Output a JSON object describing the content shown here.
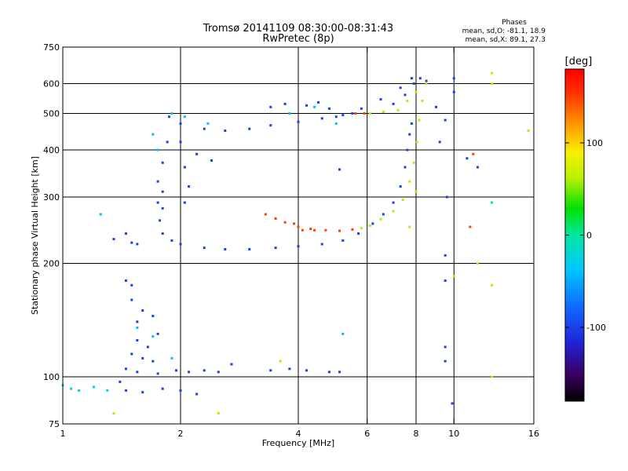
{
  "chart_data": {
    "type": "scatter",
    "title": "Tromsø 20141109 08:30:00-08:31:43",
    "subtitle": "RwPretec (8p)",
    "stats": {
      "heading": "Phases",
      "line_o": "mean, sd,O: -81.1, 18.9",
      "line_x": "mean, sd,X: 89.1, 27.3"
    },
    "xlabel": "Frequency [MHz]",
    "ylabel": "Stationary phase Virtual Height [km]",
    "x_scale": "log",
    "y_scale": "log",
    "xlim": [
      1,
      16
    ],
    "ylim": [
      75,
      750
    ],
    "x_ticks": [
      1,
      2,
      4,
      6,
      8,
      10,
      16
    ],
    "x_tick_labels": [
      "1",
      "2",
      "4",
      "6",
      "8",
      "10",
      "16"
    ],
    "y_ticks": [
      75,
      100,
      200,
      300,
      400,
      500,
      600,
      750
    ],
    "y_tick_labels": [
      "75",
      "100",
      "200",
      "300",
      "400",
      "500",
      "600",
      "750"
    ],
    "grid": true,
    "colorbar": {
      "label": "[deg]",
      "range": [
        -180,
        180
      ],
      "ticks": [
        100,
        0,
        -100
      ],
      "tick_labels": [
        "100",
        "0",
        "-100"
      ]
    },
    "series": [
      {
        "values": [
          [
            1.87,
            490,
            -100
          ],
          [
            2.0,
            470,
            -100
          ],
          [
            2.3,
            455,
            -100
          ],
          [
            2.6,
            450,
            -100
          ],
          [
            3.0,
            455,
            -100
          ],
          [
            3.4,
            465,
            -100
          ],
          [
            4.0,
            475,
            -100
          ],
          [
            4.6,
            485,
            -100
          ],
          [
            5.2,
            495,
            -100
          ],
          [
            5.8,
            515,
            -100
          ],
          [
            6.5,
            545,
            -100
          ],
          [
            7.3,
            585,
            -100
          ],
          [
            7.8,
            620,
            -100
          ],
          [
            3.4,
            520,
            -100
          ],
          [
            3.7,
            530,
            -100
          ],
          [
            4.2,
            525,
            -100
          ],
          [
            4.5,
            535,
            -100
          ],
          [
            4.8,
            515,
            -100
          ],
          [
            5.0,
            490,
            -100
          ],
          [
            5.5,
            500,
            -100
          ],
          [
            7.0,
            530,
            -100
          ],
          [
            7.5,
            560,
            -100
          ],
          [
            7.9,
            600,
            -100
          ],
          [
            8.2,
            620,
            -100
          ],
          [
            2.2,
            390,
            -100
          ],
          [
            2.4,
            375,
            -100
          ],
          [
            2.0,
            420,
            -100
          ],
          [
            1.85,
            420,
            -100
          ],
          [
            1.8,
            370,
            -100
          ],
          [
            1.75,
            330,
            -100
          ],
          [
            1.75,
            290,
            -100
          ],
          [
            1.77,
            260,
            -100
          ],
          [
            1.8,
            240,
            -100
          ],
          [
            1.9,
            230,
            -100
          ],
          [
            2.0,
            225,
            -100
          ],
          [
            2.3,
            220,
            -100
          ],
          [
            2.6,
            218,
            -100
          ],
          [
            3.0,
            218,
            -100
          ],
          [
            3.5,
            220,
            -100
          ],
          [
            4.0,
            222,
            -100
          ],
          [
            4.6,
            225,
            -100
          ],
          [
            5.2,
            230,
            -100
          ],
          [
            5.7,
            240,
            -100
          ],
          [
            6.2,
            255,
            -100
          ],
          [
            6.6,
            270,
            -100
          ],
          [
            7.0,
            290,
            -100
          ],
          [
            7.3,
            320,
            -100
          ],
          [
            7.5,
            360,
            -100
          ],
          [
            7.6,
            400,
            -100
          ],
          [
            7.7,
            440,
            -100
          ],
          [
            7.8,
            470,
            -100
          ],
          [
            2.05,
            290,
            -100
          ],
          [
            2.1,
            320,
            -100
          ],
          [
            2.05,
            360,
            -100
          ],
          [
            1.8,
            280,
            -100
          ],
          [
            1.8,
            310,
            -100
          ],
          [
            1.35,
            232,
            -100
          ],
          [
            1.45,
            240,
            -100
          ],
          [
            1.5,
            227,
            -100
          ],
          [
            1.55,
            225,
            -100
          ],
          [
            1.45,
            180,
            -100
          ],
          [
            1.5,
            175,
            -100
          ],
          [
            1.5,
            160,
            -100
          ],
          [
            1.6,
            150,
            -100
          ],
          [
            1.7,
            145,
            -100
          ],
          [
            1.55,
            140,
            -100
          ],
          [
            1.55,
            125,
            -100
          ],
          [
            1.65,
            120,
            -100
          ],
          [
            1.75,
            130,
            -100
          ],
          [
            1.5,
            115,
            -100
          ],
          [
            1.6,
            112,
            -100
          ],
          [
            1.7,
            110,
            -100
          ],
          [
            1.45,
            105,
            -100
          ],
          [
            1.55,
            103,
            -100
          ],
          [
            1.75,
            102,
            -100
          ],
          [
            1.95,
            104,
            -100
          ],
          [
            2.1,
            103,
            -100
          ],
          [
            2.3,
            104,
            -100
          ],
          [
            2.5,
            103,
            -100
          ],
          [
            1.45,
            92,
            -100
          ],
          [
            1.6,
            91,
            -100
          ],
          [
            1.8,
            93,
            -100
          ],
          [
            2.0,
            92,
            -100
          ],
          [
            2.2,
            90,
            -100
          ],
          [
            1.4,
            97,
            -100
          ],
          [
            2.7,
            108,
            -100
          ],
          [
            3.4,
            104,
            -100
          ],
          [
            3.8,
            105,
            -100
          ],
          [
            4.2,
            104,
            -100
          ],
          [
            4.8,
            103,
            -100
          ],
          [
            5.1,
            103,
            -100
          ],
          [
            8.5,
            610,
            -100
          ],
          [
            9.0,
            520,
            -100
          ],
          [
            9.2,
            420,
            -100
          ],
          [
            9.5,
            480,
            -100
          ],
          [
            10.0,
            570,
            -100
          ],
          [
            10.0,
            620,
            -100
          ],
          [
            9.6,
            300,
            -100
          ],
          [
            9.5,
            210,
            -100
          ],
          [
            9.5,
            180,
            -100
          ],
          [
            9.5,
            120,
            -100
          ],
          [
            9.5,
            110,
            -100
          ],
          [
            9.9,
            85,
            -100
          ],
          [
            10.8,
            380,
            -100
          ],
          [
            11.5,
            360,
            -100
          ],
          [
            5.1,
            355,
            -100
          ]
        ]
      },
      {
        "values": [
          [
            1.05,
            93,
            -20
          ],
          [
            1.1,
            92,
            -20
          ],
          [
            1.2,
            94,
            -20
          ],
          [
            1.3,
            92,
            -20
          ],
          [
            1.0,
            95,
            -20
          ],
          [
            1.9,
            500,
            -40
          ],
          [
            2.05,
            490,
            -40
          ],
          [
            2.35,
            470,
            -40
          ],
          [
            1.7,
            440,
            -40
          ],
          [
            1.75,
            400,
            -40
          ],
          [
            3.8,
            500,
            -40
          ],
          [
            4.4,
            520,
            -40
          ],
          [
            1.55,
            135,
            -40
          ],
          [
            1.7,
            128,
            -40
          ],
          [
            1.9,
            112,
            -40
          ],
          [
            1.25,
            270,
            -40
          ],
          [
            5.2,
            130,
            -40
          ],
          [
            5.0,
            470,
            -40
          ]
        ]
      },
      {
        "values": [
          [
            3.3,
            270,
            150
          ],
          [
            3.5,
            263,
            150
          ],
          [
            3.7,
            257,
            150
          ],
          [
            4.0,
            250,
            150
          ],
          [
            4.3,
            247,
            150
          ],
          [
            4.7,
            245,
            150
          ],
          [
            5.1,
            244,
            150
          ],
          [
            5.5,
            246,
            150
          ],
          [
            3.9,
            255,
            150
          ],
          [
            4.1,
            245,
            150
          ],
          [
            4.4,
            245,
            150
          ],
          [
            5.6,
            500,
            150
          ],
          [
            5.9,
            500,
            150
          ],
          [
            11.0,
            250,
            150
          ],
          [
            11.2,
            390,
            150
          ]
        ]
      },
      {
        "values": [
          [
            5.8,
            248,
            60
          ],
          [
            6.1,
            252,
            60
          ],
          [
            6.5,
            262,
            60
          ],
          [
            7.0,
            275,
            60
          ],
          [
            7.4,
            295,
            60
          ],
          [
            7.7,
            330,
            60
          ],
          [
            7.9,
            370,
            60
          ],
          [
            8.05,
            420,
            60
          ],
          [
            8.15,
            480,
            60
          ],
          [
            8.3,
            540,
            60
          ],
          [
            7.2,
            510,
            60
          ],
          [
            7.6,
            540,
            60
          ],
          [
            8.0,
            570,
            60
          ],
          [
            8.5,
            600,
            60
          ],
          [
            6.1,
            500,
            60
          ],
          [
            6.6,
            505,
            60
          ],
          [
            7.7,
            250,
            60
          ],
          [
            8.0,
            310,
            60
          ],
          [
            12.5,
            640,
            60
          ],
          [
            12.5,
            600,
            60
          ],
          [
            12.5,
            175,
            60
          ],
          [
            12.5,
            100,
            60
          ],
          [
            10.0,
            185,
            60
          ],
          [
            15.5,
            450,
            60
          ],
          [
            11.5,
            200,
            60
          ],
          [
            2.5,
            80,
            60
          ],
          [
            1.35,
            80,
            60
          ],
          [
            3.6,
            110,
            60
          ]
        ]
      },
      {
        "values": [
          [
            12.5,
            290,
            0
          ]
        ]
      }
    ]
  }
}
